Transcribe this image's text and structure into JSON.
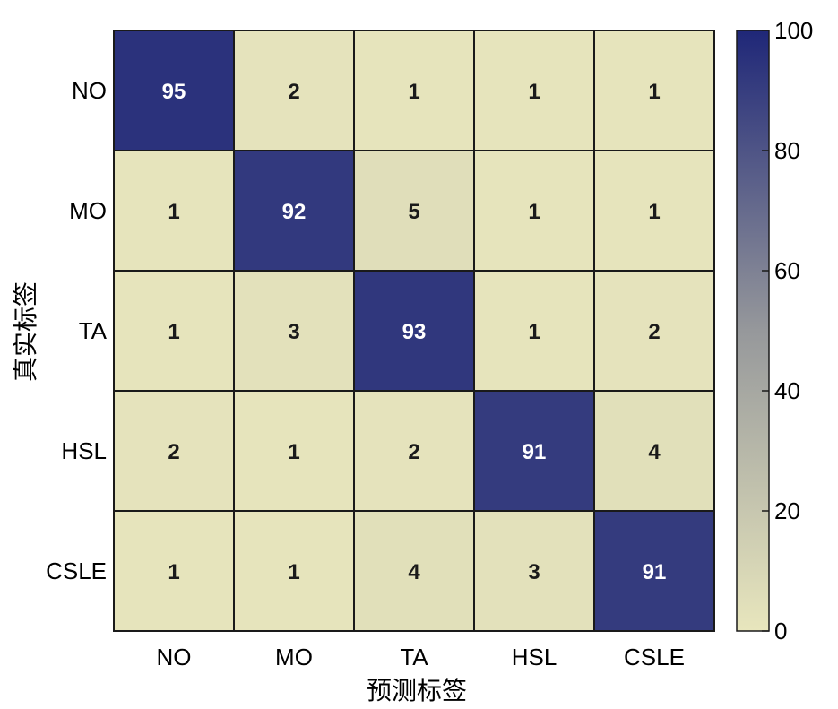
{
  "chart_data": {
    "type": "heatmap",
    "xlabel": "预测标签",
    "ylabel": "真实标签",
    "x_categories": [
      "NO",
      "MO",
      "TA",
      "HSL",
      "CSLE"
    ],
    "y_categories": [
      "NO",
      "MO",
      "TA",
      "HSL",
      "CSLE"
    ],
    "values": [
      [
        95,
        2,
        1,
        1,
        1
      ],
      [
        1,
        92,
        5,
        1,
        1
      ],
      [
        1,
        3,
        93,
        1,
        2
      ],
      [
        2,
        1,
        2,
        91,
        4
      ],
      [
        1,
        1,
        4,
        3,
        91
      ]
    ],
    "colorbar": {
      "range": [
        0,
        100
      ],
      "ticks": [
        0,
        20,
        40,
        60,
        80,
        100
      ],
      "low_color": "#e8e6bd",
      "high_color": "#1f2778"
    },
    "grid": true
  }
}
